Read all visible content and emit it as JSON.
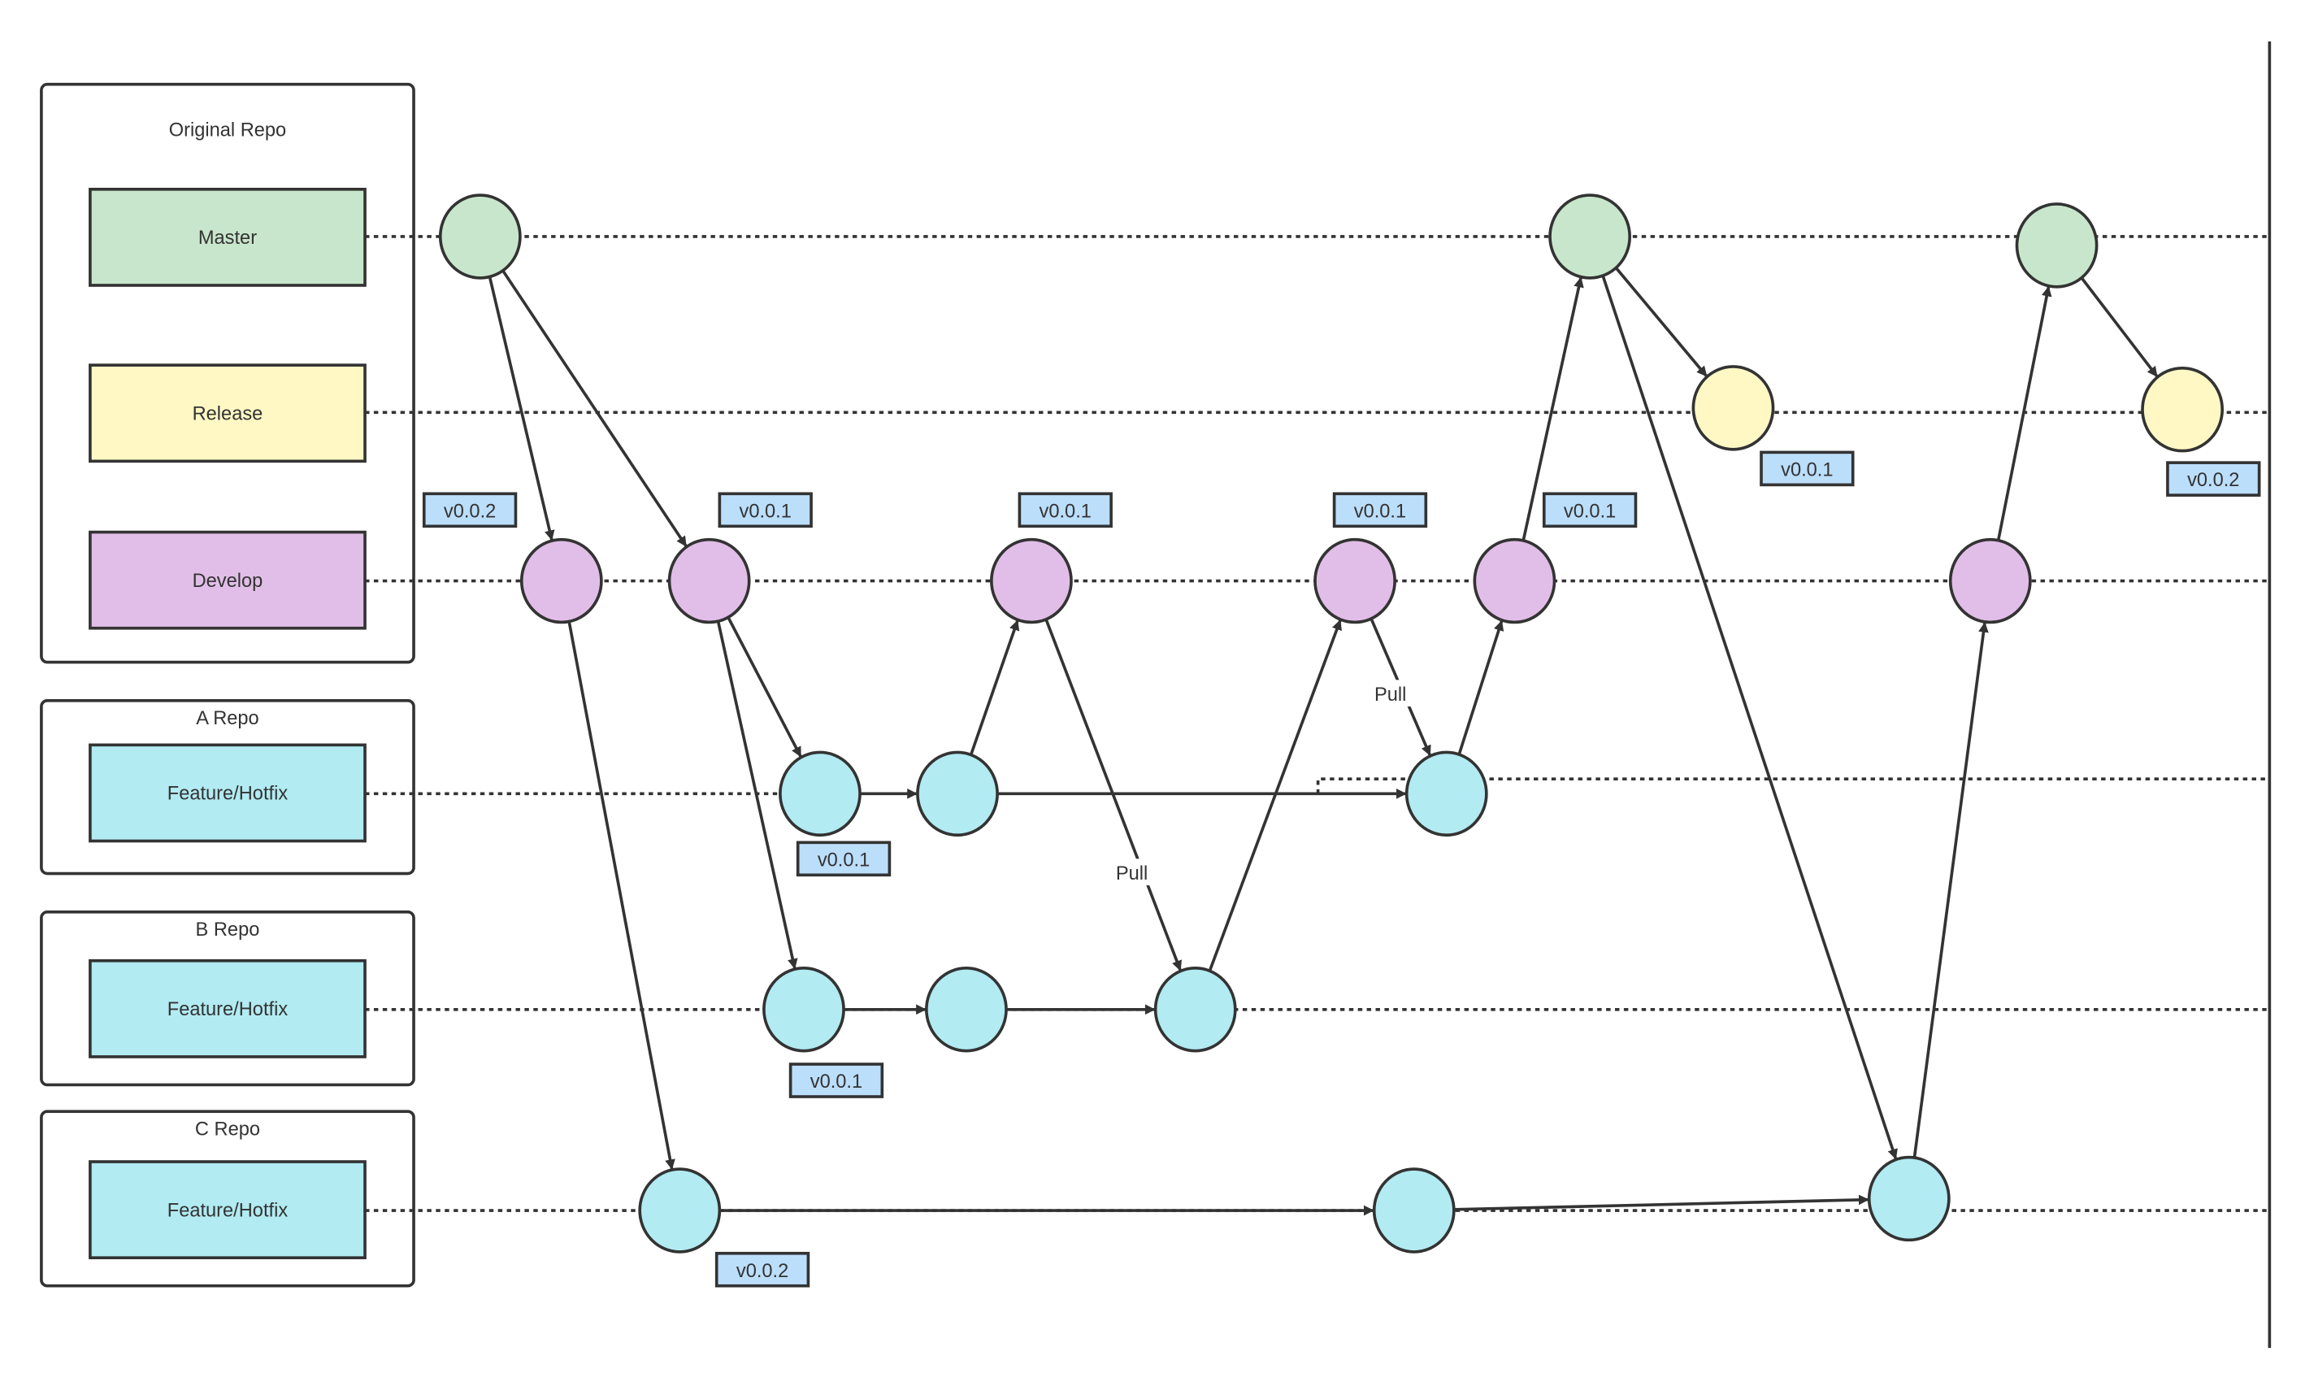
{
  "repos": {
    "original": {
      "title": "Original Repo",
      "branches": [
        "Master",
        "Release",
        "Develop"
      ]
    },
    "a": {
      "title": "A Repo",
      "branch": "Feature/Hotfix"
    },
    "b": {
      "title": "B Repo",
      "branch": "Feature/Hotfix"
    },
    "c": {
      "title": "C Repo",
      "branch": "Feature/Hotfix"
    }
  },
  "colors": {
    "master": "#c8e6cb",
    "release": "#fff8c4",
    "develop": "#e1bee7",
    "feature": "#b2ebf2",
    "tag": "#bbdefb",
    "stroke": "#333333"
  },
  "tags": [
    "v0.0.2",
    "v0.0.1",
    "v0.0.1",
    "v0.0.1",
    "v0.0.1",
    "v0.0.1",
    "v0.0.2",
    "v0.0.1",
    "v0.0.1",
    "v0.0.2"
  ],
  "edge_labels": {
    "pull_1": "Pull",
    "pull_2": "Pull"
  }
}
